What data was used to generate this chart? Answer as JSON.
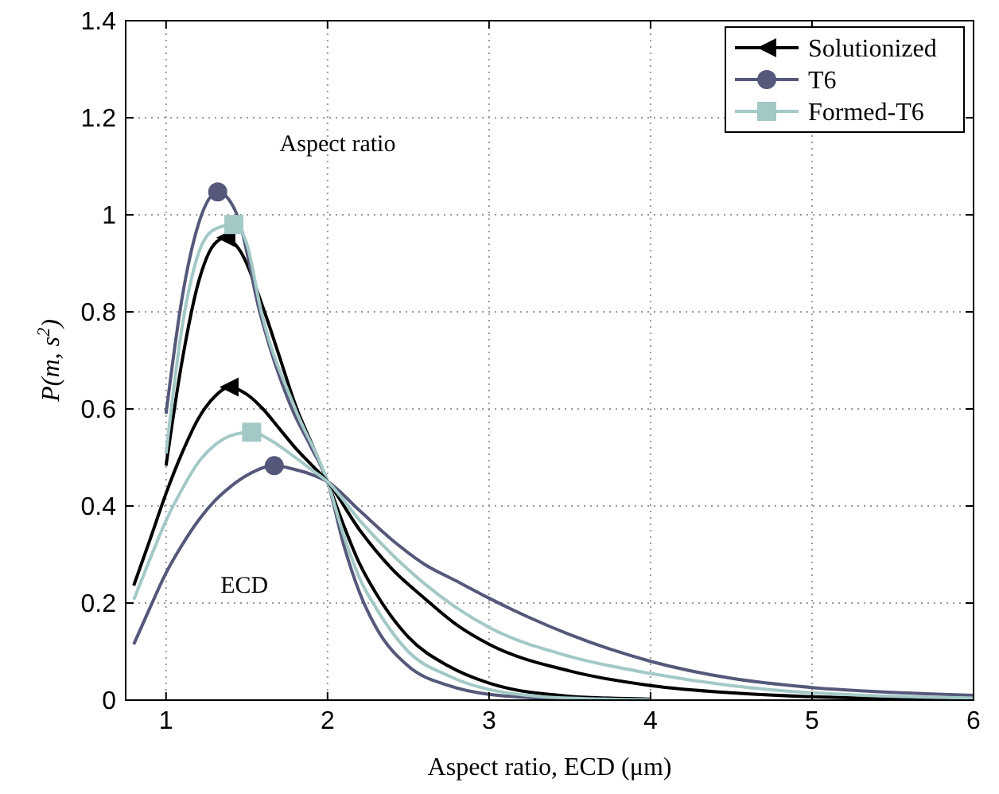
{
  "chart_data": {
    "type": "line",
    "xlabel": "Aspect ratio, ECD (μm)",
    "ylabel": "P(m, s$^{2}$)",
    "xlim": [
      0.75,
      6
    ],
    "ylim": [
      0,
      1.4
    ],
    "xticks": [
      1,
      2,
      3,
      4,
      5,
      6
    ],
    "yticks": [
      0,
      0.2,
      0.4,
      0.6,
      0.8,
      1,
      1.2,
      1.4
    ],
    "grid": true,
    "legend": "top right",
    "annotations": [
      "Aspect ratio",
      "ECD"
    ],
    "series": [
      {
        "name": "Solutionized",
        "color": "#000000",
        "x": [
          1,
          1.1,
          1.2,
          1.3,
          1.37,
          1.45,
          1.61,
          1.7,
          1.81,
          1.9,
          2,
          2.1,
          2.2,
          2.3,
          2.5,
          2.75,
          3,
          3.5,
          4
        ],
        "values": [
          0.483,
          0.7,
          0.86,
          0.94,
          0.953,
          0.93,
          0.8,
          0.71,
          0.6,
          0.53,
          0.45,
          0.36,
          0.28,
          0.22,
          0.13,
          0.07,
          0.035,
          0.008,
          0.002
        ]
      },
      {
        "name": "T6",
        "color": "#55587a",
        "x": [
          1,
          1.1,
          1.2,
          1.32,
          1.44,
          1.58,
          1.78,
          1.9,
          2,
          2.1,
          2.2,
          2.3,
          2.5,
          2.75,
          3,
          3.5
        ],
        "values": [
          0.59,
          0.83,
          0.98,
          1.047,
          1,
          0.8,
          0.6,
          0.52,
          0.45,
          0.32,
          0.22,
          0.15,
          0.07,
          0.03,
          0.012,
          0.002
        ]
      },
      {
        "name": "Formed-T6",
        "color": "#a3c9c6",
        "x": [
          1,
          1.1,
          1.2,
          1.3,
          1.42,
          1.5,
          1.59,
          1.8,
          2,
          2.1,
          2.2,
          2.3,
          2.5,
          2.75,
          3,
          3.5,
          4
        ],
        "values": [
          0.508,
          0.77,
          0.92,
          0.97,
          0.98,
          0.94,
          0.8,
          0.6,
          0.45,
          0.34,
          0.25,
          0.19,
          0.1,
          0.05,
          0.022,
          0.004,
          0.001
        ]
      },
      {
        "color": "#000000",
        "x": [
          0.8,
          0.9,
          1,
          1.1,
          1.2,
          1.3,
          1.39,
          1.5,
          1.6,
          1.7,
          1.8,
          1.9,
          2,
          2.2,
          2.4,
          2.6,
          2.8,
          3,
          3.5,
          4,
          4.5,
          5,
          6
        ],
        "values": [
          0.236,
          0.33,
          0.426,
          0.51,
          0.58,
          0.625,
          0.645,
          0.63,
          0.6,
          0.56,
          0.52,
          0.485,
          0.45,
          0.35,
          0.27,
          0.21,
          0.155,
          0.115,
          0.06,
          0.03,
          0.015,
          0.007,
          0.002
        ]
      },
      {
        "color": "#55587a",
        "x": [
          0.8,
          0.9,
          1,
          1.1,
          1.2,
          1.3,
          1.4,
          1.5,
          1.67,
          1.8,
          1.9,
          2,
          2.2,
          2.4,
          2.6,
          2.8,
          3,
          3.25,
          3.5,
          3.75,
          4,
          4.5,
          5,
          5.5,
          6
        ],
        "values": [
          0.115,
          0.19,
          0.262,
          0.32,
          0.37,
          0.41,
          0.44,
          0.463,
          0.483,
          0.475,
          0.465,
          0.45,
          0.39,
          0.33,
          0.28,
          0.245,
          0.21,
          0.17,
          0.135,
          0.105,
          0.08,
          0.045,
          0.026,
          0.016,
          0.01
        ]
      },
      {
        "color": "#a3c9c6",
        "x": [
          0.8,
          0.9,
          1,
          1.1,
          1.2,
          1.3,
          1.4,
          1.53,
          1.65,
          1.8,
          1.9,
          2,
          2.2,
          2.4,
          2.6,
          2.8,
          3,
          3.5,
          4,
          4.5,
          5,
          6
        ],
        "values": [
          0.207,
          0.29,
          0.37,
          0.435,
          0.49,
          0.525,
          0.545,
          0.552,
          0.535,
          0.5,
          0.475,
          0.45,
          0.37,
          0.3,
          0.24,
          0.19,
          0.15,
          0.09,
          0.055,
          0.03,
          0.015,
          0.004
        ]
      },
      {
        "type": "scatter",
        "color": "#000000",
        "marker": "triangle",
        "x": [
          1.37,
          1.39
        ],
        "values": [
          0.953,
          0.645
        ]
      },
      {
        "type": "scatter",
        "color": "#55587a",
        "marker": "circle",
        "x": [
          1.32,
          1.67
        ],
        "values": [
          1.047,
          0.483
        ]
      },
      {
        "type": "scatter",
        "color": "#a3c9c6",
        "marker": "square",
        "x": [
          1.42,
          1.53
        ],
        "values": [
          0.98,
          0.552
        ]
      }
    ]
  }
}
